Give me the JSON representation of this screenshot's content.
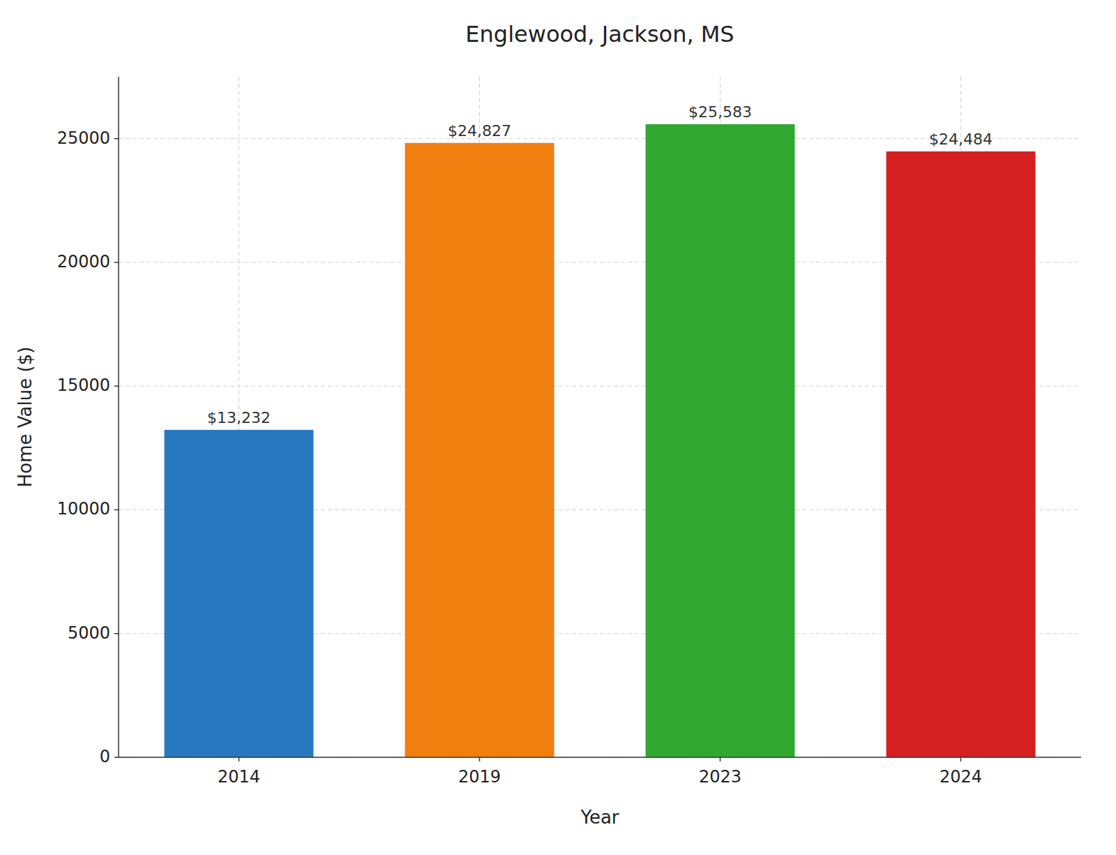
{
  "chart_data": {
    "type": "bar",
    "title": "Englewood, Jackson, MS",
    "xlabel": "Year",
    "ylabel": "Home Value ($)",
    "categories": [
      "2014",
      "2019",
      "2023",
      "2024"
    ],
    "values": [
      13232,
      24827,
      25583,
      24484
    ],
    "value_labels": [
      "$13,232",
      "$24,827",
      "$25,583",
      "$24,484"
    ],
    "colors": [
      "#2878c0",
      "#f07f10",
      "#30a830",
      "#d42020"
    ],
    "ylim": [
      0,
      27500
    ],
    "yticks": [
      0,
      5000,
      10000,
      15000,
      20000,
      25000
    ],
    "grid": true,
    "data_labels": true
  }
}
